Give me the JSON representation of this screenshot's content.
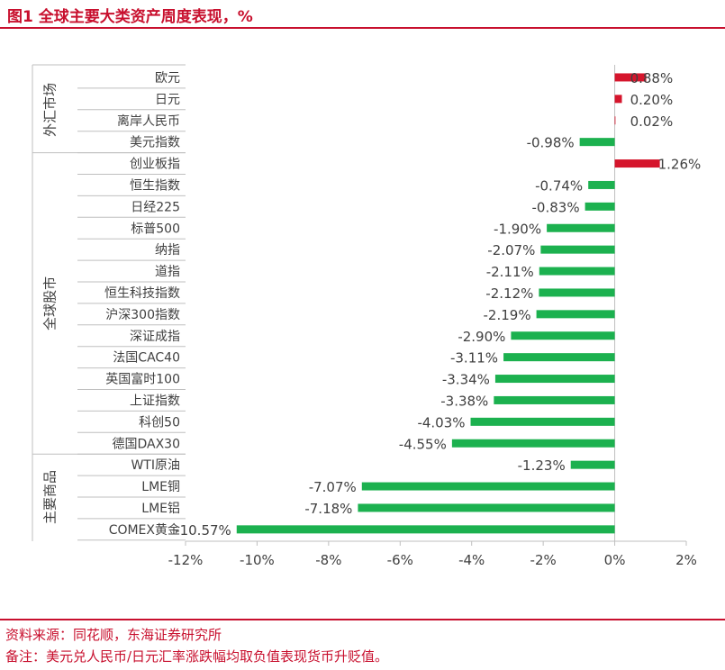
{
  "figure": {
    "title": "图1  全球主要大类资产周度表现，%",
    "source": "资料来源：同花顺，东海证券研究所",
    "note": "备注：美元兑人民币/日元汇率涨跌幅均取负值表现货币升贬值。"
  },
  "colors": {
    "positive": "#d5152c",
    "negative": "#1cb14f",
    "accent": "#c8102e",
    "axis": "#bfbfbf",
    "text": "#404040"
  },
  "chart_data": {
    "type": "bar",
    "orientation": "horizontal",
    "title": "图1  全球主要大类资产周度表现，%",
    "xlim": [
      -12,
      2
    ],
    "xticks": [
      "-12%",
      "-10%",
      "-8%",
      "-6%",
      "-4%",
      "-2%",
      "0%",
      "2%"
    ],
    "xtick_values": [
      -12,
      -10,
      -8,
      -6,
      -4,
      -2,
      0,
      2
    ],
    "groups": [
      {
        "name": "外汇市场",
        "categories": [
          "欧元",
          "日元",
          "离岸人民币",
          "美元指数"
        ],
        "values": [
          0.88,
          0.2,
          0.02,
          -0.98
        ],
        "labels": [
          "0.88%",
          "0.20%",
          "0.02%",
          "-0.98%"
        ]
      },
      {
        "name": "全球股市",
        "categories": [
          "创业板指",
          "恒生指数",
          "日经225",
          "标普500",
          "纳指",
          "道指",
          "恒生科技指数",
          "沪深300指数",
          "深证成指",
          "法国CAC40",
          "英国富时100",
          "上证指数",
          "科创50",
          "德国DAX30"
        ],
        "values": [
          1.26,
          -0.74,
          -0.83,
          -1.9,
          -2.07,
          -2.11,
          -2.12,
          -2.19,
          -2.9,
          -3.11,
          -3.34,
          -3.38,
          -4.03,
          -4.55
        ],
        "labels": [
          "1.26%",
          "-0.74%",
          "-0.83%",
          "-1.90%",
          "-2.07%",
          "-2.11%",
          "-2.12%",
          "-2.19%",
          "-2.90%",
          "-3.11%",
          "-3.34%",
          "-3.38%",
          "-4.03%",
          "-4.55%"
        ]
      },
      {
        "name": "主要商品",
        "categories": [
          "WTI原油",
          "LME铜",
          "LME铝",
          "COMEX黄金"
        ],
        "values": [
          -1.23,
          -7.07,
          -7.18,
          -10.57
        ],
        "labels": [
          "-1.23%",
          "-7.07%",
          "-7.18%",
          "-10.57%"
        ]
      }
    ]
  }
}
